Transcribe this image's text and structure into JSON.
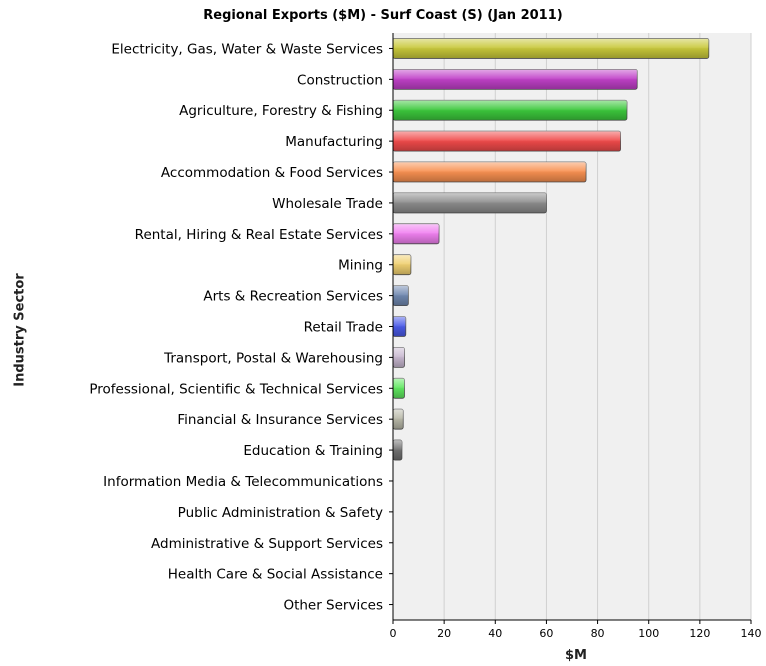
{
  "chart_data": {
    "type": "bar",
    "orientation": "horizontal",
    "title": "Regional Exports ($M) - Surf Coast (S) (Jan 2011)",
    "xlabel": "$M",
    "ylabel": "Industry Sector",
    "xlim": [
      0,
      140
    ],
    "xticks": [
      0,
      20,
      40,
      60,
      80,
      100,
      120,
      140
    ],
    "grid": true,
    "legend": "none",
    "categories": [
      "Electricity, Gas, Water & Waste Services",
      "Construction",
      "Agriculture, Forestry & Fishing",
      "Manufacturing",
      "Accommodation & Food Services",
      "Wholesale Trade",
      "Rental, Hiring & Real Estate Services",
      "Mining",
      "Arts & Recreation Services",
      "Retail Trade",
      "Transport, Postal & Warehousing",
      "Professional, Scientific & Technical Services",
      "Financial & Insurance Services",
      "Education & Training",
      "Information Media & Telecommunications",
      "Public Administration & Safety",
      "Administrative & Support Services",
      "Health Care & Social Assistance",
      "Other Services"
    ],
    "values": [
      123.5,
      95.5,
      91.5,
      89,
      75.5,
      60,
      18,
      7,
      6,
      5,
      4.5,
      4.5,
      4,
      3.5,
      0,
      0,
      0,
      0,
      0
    ],
    "colors": [
      "#c8c83a",
      "#c040c8",
      "#3cc83c",
      "#f04a4a",
      "#f89050",
      "#8c8c8c",
      "#f080f0",
      "#f0d070",
      "#7088b0",
      "#4a5ae8",
      "#c8b8d0",
      "#60e860",
      "#b8b8a8",
      "#707070",
      "#999999",
      "#999999",
      "#999999",
      "#999999",
      "#999999"
    ]
  }
}
